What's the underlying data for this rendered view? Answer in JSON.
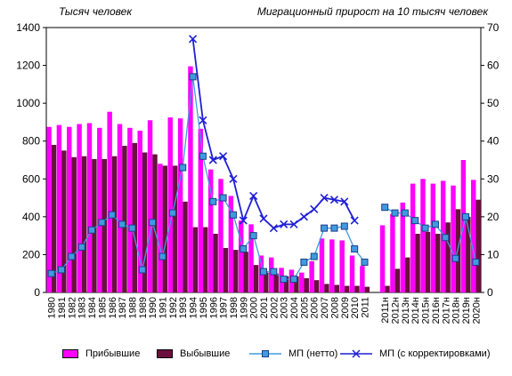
{
  "captions": {
    "left_axis_unit": "Тысяч человек",
    "right_axis_unit": "Миграционный прирост на 10 тысяч человек"
  },
  "legend": {
    "arrived": "Прибывшие",
    "departed": "Выбывшие",
    "net": "МП  (нетто)",
    "net_corrected": "МП  (с корректировками)"
  },
  "colors": {
    "arrived": "#ff00ff",
    "departed": "#6b0f3f",
    "net": "#3f9be0",
    "net_corrected": "#1f1fd6"
  },
  "chart_data": {
    "type": "bar",
    "categories": [
      "1980",
      "1981",
      "1982",
      "1983",
      "1984",
      "1985",
      "1986",
      "1987",
      "1988",
      "1989",
      "1990",
      "1991",
      "1992",
      "1993",
      "1994",
      "1995",
      "1996",
      "1997",
      "1998",
      "1999",
      "2000",
      "2001",
      "2002",
      "2003",
      "2004",
      "2005",
      "2006",
      "2007",
      "2008",
      "2009",
      "2010",
      "2011",
      "",
      "2011н",
      "2012н",
      "2013н",
      "2014н",
      "2015н",
      "2016н",
      "2017н",
      "2018н",
      "2019н",
      "2020н"
    ],
    "y_left": {
      "ticks": [
        0,
        200,
        400,
        600,
        800,
        1000,
        1200,
        1400
      ],
      "ylim": [
        0,
        1400
      ]
    },
    "y_right": {
      "ticks": [
        0,
        10,
        20,
        30,
        40,
        50,
        60,
        70
      ],
      "ylim": [
        0,
        70
      ]
    },
    "series": [
      {
        "name": "Прибывшие",
        "type": "bar",
        "axis": "left",
        "values": [
          875,
          885,
          875,
          890,
          895,
          870,
          955,
          890,
          870,
          855,
          910,
          680,
          925,
          920,
          1195,
          865,
          650,
          600,
          510,
          380,
          360,
          195,
          185,
          130,
          120,
          105,
          165,
          285,
          280,
          275,
          195,
          140,
          null,
          355,
          415,
          475,
          575,
          600,
          575,
          590,
          565,
          700,
          595
        ]
      },
      {
        "name": "Выбывшие",
        "type": "bar",
        "axis": "left",
        "values": [
          780,
          750,
          715,
          720,
          705,
          705,
          720,
          775,
          790,
          740,
          730,
          670,
          670,
          480,
          345,
          345,
          310,
          235,
          225,
          215,
          145,
          105,
          100,
          85,
          85,
          75,
          65,
          45,
          40,
          35,
          35,
          30,
          null,
          35,
          125,
          185,
          310,
          320,
          310,
          370,
          440,
          400,
          490
        ]
      },
      {
        "name": "МП  (нетто)",
        "type": "line",
        "axis": "right",
        "values": [
          5,
          6,
          9.5,
          12,
          16.5,
          18.5,
          20.5,
          18,
          17,
          6,
          18.5,
          9.5,
          21,
          33,
          57,
          36,
          24,
          25,
          20.5,
          11.5,
          15,
          5.5,
          5.5,
          3.5,
          3.5,
          8,
          9.5,
          17,
          17,
          17.5,
          11.5,
          8,
          null,
          22.5,
          21,
          21,
          19,
          17,
          18,
          14.5,
          9,
          20,
          8
        ]
      },
      {
        "name": "МП  (с корректировками)",
        "type": "line",
        "axis": "right",
        "values": [
          null,
          null,
          null,
          null,
          null,
          null,
          null,
          null,
          null,
          null,
          null,
          null,
          null,
          null,
          67,
          45.5,
          35,
          36,
          30,
          19,
          25.5,
          19.5,
          17,
          18,
          18,
          20,
          22,
          25,
          24.5,
          24,
          19,
          null,
          null,
          null,
          null,
          null,
          null,
          null,
          null,
          null,
          null,
          null,
          null
        ]
      }
    ]
  }
}
